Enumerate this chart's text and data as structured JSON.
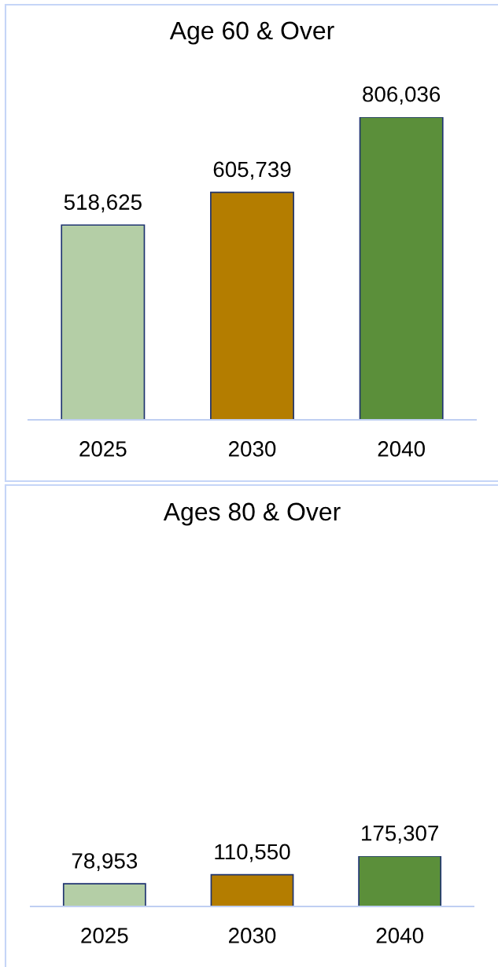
{
  "chart_data": [
    {
      "type": "bar",
      "title": "Age 60 & Over",
      "categories": [
        "2025",
        "2030",
        "2040"
      ],
      "values": [
        518625,
        605739,
        806036
      ],
      "value_labels": [
        "518,625",
        "605,739",
        "806,036"
      ],
      "colors": [
        "#b4cea6",
        "#b47d00",
        "#5b8f3a"
      ],
      "tick_labels": "x"
    },
    {
      "type": "bar",
      "title": "Ages 80 & Over",
      "categories": [
        "2025",
        "2030",
        "2040"
      ],
      "values": [
        78953,
        110550,
        175307
      ],
      "value_labels": [
        "78,953",
        "110,550",
        "175,307"
      ],
      "colors": [
        "#b4cea6",
        "#b47d00",
        "#5b8f3a"
      ],
      "tick_labels": "x"
    }
  ]
}
